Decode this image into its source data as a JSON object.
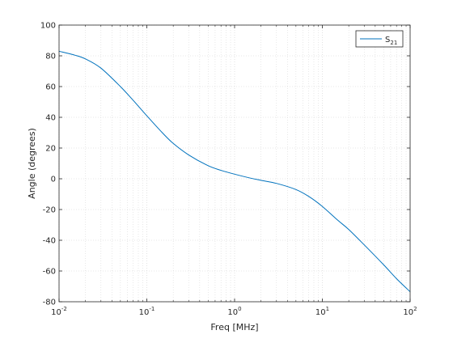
{
  "chart_data": {
    "type": "line",
    "xlabel": "Freq [MHz]",
    "ylabel": "Angle (degrees)",
    "xscale": "log",
    "xlim": [
      0.01,
      100
    ],
    "ylim": [
      -80,
      100
    ],
    "x_ticks": [
      {
        "value": 0.01,
        "base": "10",
        "exp": "-2"
      },
      {
        "value": 0.1,
        "base": "10",
        "exp": "-1"
      },
      {
        "value": 1,
        "base": "10",
        "exp": "0"
      },
      {
        "value": 10,
        "base": "10",
        "exp": "1"
      },
      {
        "value": 100,
        "base": "10",
        "exp": "2"
      }
    ],
    "y_ticks": [
      -80,
      -60,
      -40,
      -20,
      0,
      20,
      40,
      60,
      80,
      100
    ],
    "grid": "major and minor, dotted",
    "legend_position": "top-right",
    "series": [
      {
        "name": "S",
        "name_subscript": "21",
        "color": "#0072BD",
        "x": [
          0.01,
          0.015,
          0.02,
          0.03,
          0.05,
          0.07,
          0.1,
          0.15,
          0.2,
          0.3,
          0.5,
          0.7,
          1,
          1.5,
          2,
          3,
          5,
          7,
          10,
          15,
          20,
          30,
          50,
          70,
          100
        ],
        "y": [
          83,
          80.5,
          78,
          72,
          60,
          51,
          41,
          30,
          23,
          15.5,
          8.5,
          5.5,
          3,
          0.5,
          -1,
          -3,
          -7,
          -11.5,
          -18,
          -27,
          -33,
          -43,
          -56,
          -65,
          -73.5
        ]
      }
    ]
  }
}
